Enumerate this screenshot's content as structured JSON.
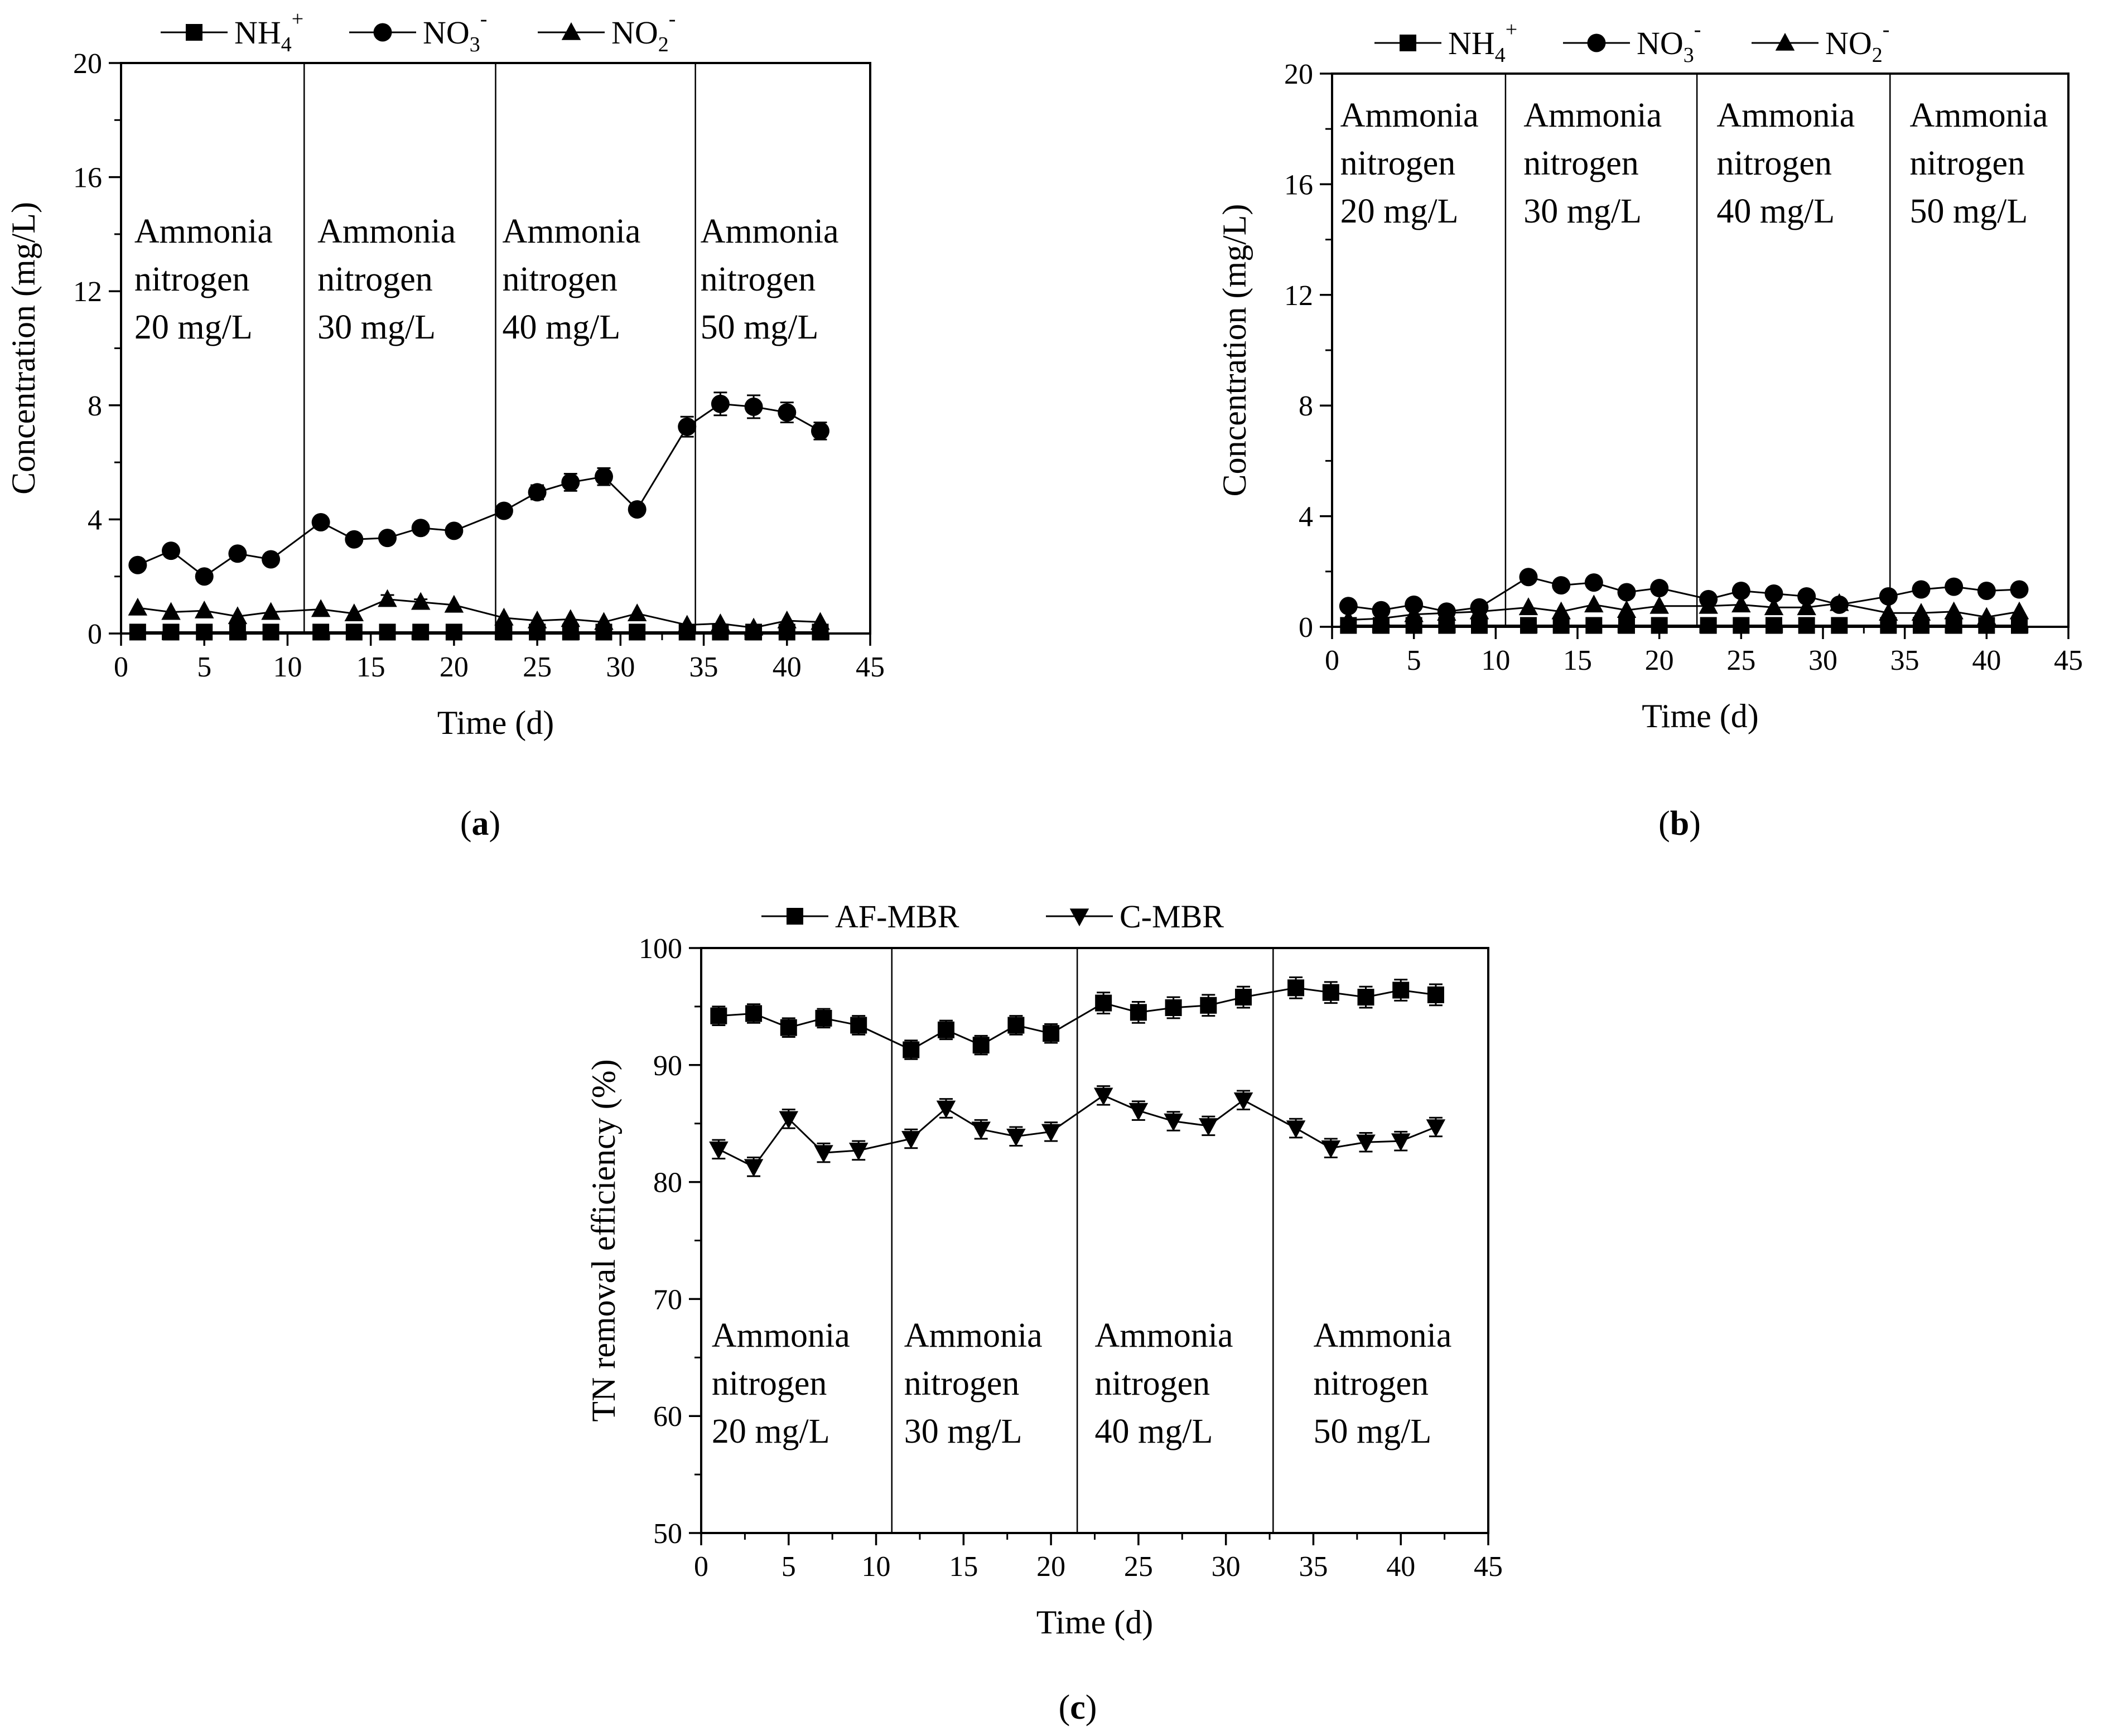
{
  "figure": {
    "panels": [
      {
        "label": "a",
        "chart_data": {
          "type": "line",
          "xlabel": "Time (d)",
          "ylabel": "Concentration (mg/L)",
          "xlim": [
            0,
            45
          ],
          "ylim": [
            0,
            20
          ],
          "xticks": [
            0,
            5,
            10,
            15,
            20,
            25,
            30,
            35,
            40,
            45
          ],
          "yticks": [
            0,
            4,
            8,
            12,
            16,
            20
          ],
          "grid": false,
          "legend": "top-center",
          "dividers": [
            11,
            22.5,
            34.5
          ],
          "annotations": [
            {
              "lines": [
                "Ammonia",
                "nitrogen",
                "20 mg/L"
              ],
              "x": 0.8
            },
            {
              "lines": [
                "Ammonia",
                "nitrogen",
                "30 mg/L"
              ],
              "x": 11.8
            },
            {
              "lines": [
                "Ammonia",
                "nitrogen",
                "40 mg/L"
              ],
              "x": 22.9
            },
            {
              "lines": [
                "Ammonia",
                "nitrogen",
                "50 mg/L"
              ],
              "x": 34.8
            }
          ],
          "series": [
            {
              "name": "NH",
              "sub": "4",
              "sup": "+",
              "marker": "square",
              "x": [
                1,
                3,
                5,
                7,
                9,
                12,
                14,
                16,
                18,
                20,
                23,
                25,
                27,
                29,
                31,
                34,
                36,
                38,
                40,
                42
              ],
              "y": [
                0.05,
                0.05,
                0.05,
                0.05,
                0.05,
                0.05,
                0.05,
                0.05,
                0.05,
                0.05,
                0.05,
                0.05,
                0.05,
                0.05,
                0.05,
                0.05,
                0.05,
                0.05,
                0.05,
                0.05
              ]
            },
            {
              "name": "NO",
              "sub": "3",
              "sup": "-",
              "marker": "circle",
              "x": [
                1,
                3,
                5,
                7,
                9,
                12,
                14,
                16,
                18,
                20,
                23,
                25,
                27,
                29,
                31,
                34,
                36,
                38,
                40,
                42
              ],
              "y": [
                2.4,
                2.9,
                2.0,
                2.8,
                2.6,
                3.9,
                3.3,
                3.35,
                3.7,
                3.6,
                4.3,
                4.95,
                5.3,
                5.5,
                4.35,
                7.25,
                8.05,
                7.95,
                7.75,
                7.1
              ],
              "err": [
                0,
                0,
                0,
                0,
                0,
                0,
                0,
                0,
                0,
                0,
                0.2,
                0.25,
                0.3,
                0.3,
                0.2,
                0.35,
                0.4,
                0.4,
                0.35,
                0.3
              ]
            },
            {
              "name": "NO",
              "sub": "2",
              "sup": "-",
              "marker": "triangle",
              "x": [
                1,
                3,
                5,
                7,
                9,
                12,
                14,
                16,
                18,
                20,
                23,
                25,
                27,
                29,
                31,
                34,
                36,
                38,
                40,
                42
              ],
              "y": [
                0.9,
                0.75,
                0.8,
                0.6,
                0.75,
                0.85,
                0.7,
                1.2,
                1.1,
                1.0,
                0.55,
                0.45,
                0.5,
                0.4,
                0.7,
                0.3,
                0.35,
                0.2,
                0.45,
                0.4
              ],
              "err": [
                0,
                0,
                0,
                0,
                0,
                0,
                0,
                0.15,
                0.1,
                0,
                0,
                0,
                0,
                0,
                0,
                0,
                0,
                0,
                0,
                0
              ]
            }
          ]
        }
      },
      {
        "label": "b",
        "chart_data": {
          "type": "line",
          "xlabel": "Time (d)",
          "ylabel": "Concentration (mg/L)",
          "xlim": [
            0,
            45
          ],
          "ylim": [
            0,
            20
          ],
          "xticks": [
            0,
            5,
            10,
            15,
            20,
            25,
            30,
            35,
            40,
            45
          ],
          "yticks": [
            0,
            4,
            8,
            12,
            16,
            20
          ],
          "grid": false,
          "legend": "top-center",
          "dividers": [
            10.6,
            22.3,
            34.1
          ],
          "annotations": [
            {
              "lines": [
                "Ammonia",
                "nitrogen",
                "20 mg/L"
              ],
              "x": 0.5
            },
            {
              "lines": [
                "Ammonia",
                "nitrogen",
                "30 mg/L"
              ],
              "x": 11.7
            },
            {
              "lines": [
                "Ammonia",
                "nitrogen",
                "40 mg/L"
              ],
              "x": 23.5
            },
            {
              "lines": [
                "Ammonia",
                "nitrogen",
                "50 mg/L"
              ],
              "x": 35.3
            }
          ],
          "series": [
            {
              "name": "NH",
              "sub": "4",
              "sup": "+",
              "marker": "square",
              "x": [
                1,
                3,
                5,
                7,
                9,
                12,
                14,
                16,
                18,
                20,
                23,
                25,
                27,
                29,
                31,
                34,
                36,
                38,
                40,
                42
              ],
              "y": [
                0.05,
                0.05,
                0.05,
                0.05,
                0.05,
                0.05,
                0.05,
                0.05,
                0.05,
                0.05,
                0.05,
                0.05,
                0.05,
                0.05,
                0.05,
                0.05,
                0.05,
                0.05,
                0.05,
                0.05
              ]
            },
            {
              "name": "NO",
              "sub": "3",
              "sup": "-",
              "marker": "circle",
              "x": [
                1,
                3,
                5,
                7,
                9,
                12,
                14,
                16,
                18,
                20,
                23,
                25,
                27,
                29,
                31,
                34,
                36,
                38,
                40,
                42
              ],
              "y": [
                0.75,
                0.6,
                0.8,
                0.55,
                0.7,
                1.8,
                1.5,
                1.6,
                1.25,
                1.4,
                1.0,
                1.3,
                1.2,
                1.1,
                0.8,
                1.1,
                1.35,
                1.45,
                1.3,
                1.35
              ]
            },
            {
              "name": "NO",
              "sub": "2",
              "sup": "-",
              "marker": "triangle",
              "x": [
                1,
                3,
                5,
                7,
                9,
                12,
                14,
                16,
                18,
                20,
                23,
                25,
                27,
                29,
                31,
                34,
                36,
                38,
                40,
                42
              ],
              "y": [
                0.25,
                0.3,
                0.45,
                0.5,
                0.55,
                0.7,
                0.55,
                0.8,
                0.6,
                0.75,
                0.75,
                0.8,
                0.7,
                0.7,
                0.85,
                0.5,
                0.5,
                0.55,
                0.35,
                0.55
              ]
            }
          ]
        }
      },
      {
        "label": "c",
        "chart_data": {
          "type": "line",
          "xlabel": "Time (d)",
          "ylabel": "TN removal efficiency (%)",
          "xlim": [
            0,
            45
          ],
          "ylim": [
            50,
            100
          ],
          "xticks": [
            0,
            5,
            10,
            15,
            20,
            25,
            30,
            35,
            40,
            45
          ],
          "yticks": [
            50,
            60,
            70,
            80,
            90,
            100
          ],
          "grid": false,
          "legend": "top-center",
          "dividers": [
            10.9,
            21.5,
            32.7
          ],
          "annotations": [
            {
              "lines": [
                "Ammonia",
                "nitrogen",
                "20 mg/L"
              ],
              "x": 0.6
            },
            {
              "lines": [
                "Ammonia",
                "nitrogen",
                "30 mg/L"
              ],
              "x": 11.6
            },
            {
              "lines": [
                "Ammonia",
                "nitrogen",
                "40 mg/L"
              ],
              "x": 22.5
            },
            {
              "lines": [
                "Ammonia",
                "nitrogen",
                "50 mg/L"
              ],
              "x": 35.0
            }
          ],
          "series": [
            {
              "name": "AF-MBR",
              "sub": "",
              "sup": "",
              "marker": "square",
              "x": [
                1,
                3,
                5,
                7,
                9,
                12,
                14,
                16,
                18,
                20,
                23,
                25,
                27,
                29,
                31,
                34,
                36,
                38,
                40,
                42
              ],
              "y": [
                94.2,
                94.4,
                93.2,
                94.0,
                93.4,
                91.3,
                93.0,
                91.7,
                93.4,
                92.7,
                95.3,
                94.5,
                94.9,
                95.1,
                95.8,
                96.6,
                96.2,
                95.8,
                96.4,
                96.0
              ],
              "err": [
                0.8,
                0.8,
                0.8,
                0.8,
                0.8,
                0.8,
                0.8,
                0.8,
                0.8,
                0.8,
                0.9,
                0.9,
                0.9,
                0.9,
                0.9,
                0.9,
                0.9,
                0.9,
                0.9,
                0.9
              ]
            },
            {
              "name": "C-MBR",
              "sub": "",
              "sup": "",
              "marker": "triangle-down",
              "x": [
                1,
                3,
                5,
                7,
                9,
                12,
                14,
                16,
                18,
                20,
                23,
                25,
                27,
                29,
                31,
                34,
                36,
                38,
                40,
                42
              ],
              "y": [
                82.8,
                81.3,
                85.4,
                82.5,
                82.7,
                83.7,
                86.3,
                84.5,
                83.9,
                84.3,
                87.4,
                86.1,
                85.2,
                84.8,
                87.0,
                84.6,
                82.9,
                83.4,
                83.5,
                84.7
              ],
              "err": [
                0.8,
                0.8,
                0.8,
                0.8,
                0.8,
                0.8,
                0.8,
                0.8,
                0.8,
                0.8,
                0.8,
                0.8,
                0.8,
                0.8,
                0.8,
                0.8,
                0.8,
                0.8,
                0.8,
                0.8
              ]
            }
          ]
        }
      }
    ]
  }
}
